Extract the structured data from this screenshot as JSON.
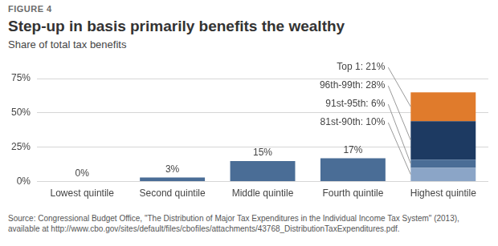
{
  "chart_data": {
    "type": "bar",
    "figure": "FIGURE 4",
    "title": "Step-up in basis primarily benefits the wealthy",
    "subtitle": "Share of total tax benefits",
    "source": [
      "Source: Congressional Budget Office, \"The Distribution of Major Tax Expenditures in the Individual Income Tax System\" (2013),",
      "available at http://www.cbo.gov/sites/default/files/cbofiles/attachments/43768_DistributionTaxExpenditures.pdf."
    ],
    "categories": [
      "Lowest quintile",
      "Second quintile",
      "Middle quintile",
      "Fourth quintile",
      "Highest quintile"
    ],
    "stacked": true,
    "data_labels": true,
    "grid": true,
    "ylim": [
      0,
      75
    ],
    "yticks": [
      {
        "value": 0,
        "label": "0%"
      },
      {
        "value": 25,
        "label": "25%"
      },
      {
        "value": 50,
        "label": "50%"
      },
      {
        "value": 75,
        "label": "75%"
      }
    ],
    "series": [
      {
        "color": "#4a6d96",
        "values": [
          0,
          3,
          15,
          17,
          null
        ],
        "value_labels": [
          "0%",
          "3%",
          "15%",
          "17%",
          null
        ]
      },
      {
        "color": "#8ba5c7",
        "values": [
          null,
          null,
          null,
          null,
          10
        ],
        "value_labels": [
          null,
          null,
          null,
          null,
          "81st-90th: 10%"
        ]
      },
      {
        "color": "#4a6d96",
        "values": [
          null,
          null,
          null,
          null,
          6
        ],
        "value_labels": [
          null,
          null,
          null,
          null,
          "91st-95th: 6%"
        ]
      },
      {
        "color": "#1d3a62",
        "values": [
          null,
          null,
          null,
          null,
          28
        ],
        "value_labels": [
          null,
          null,
          null,
          null,
          "96th-99th: 28%"
        ]
      },
      {
        "color": "#e07b2c",
        "values": [
          null,
          null,
          null,
          null,
          21
        ],
        "value_labels": [
          null,
          null,
          null,
          null,
          "Top 1: 21%"
        ]
      }
    ]
  }
}
